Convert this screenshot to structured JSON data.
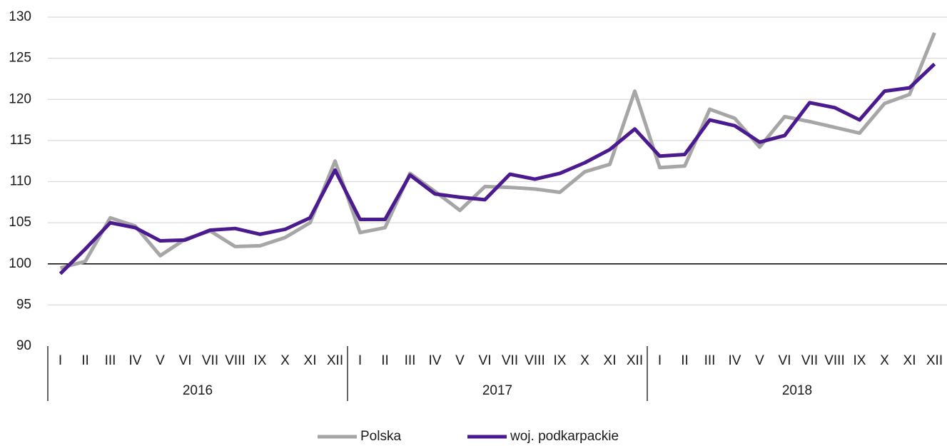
{
  "chart_data": {
    "type": "line",
    "categories": [
      "I",
      "II",
      "III",
      "IV",
      "V",
      "VI",
      "VII",
      "VIII",
      "IX",
      "X",
      "XI",
      "XII",
      "I",
      "II",
      "III",
      "IV",
      "V",
      "VI",
      "VII",
      "VIII",
      "IX",
      "X",
      "XI",
      "XII",
      "I",
      "II",
      "III",
      "IV",
      "V",
      "VI",
      "VII",
      "VIII",
      "IX",
      "X",
      "XI",
      "XII"
    ],
    "year_groups": [
      "2016",
      "2017",
      "2018"
    ],
    "series": [
      {
        "name": "Polska",
        "color": "#a6a6a6",
        "values": [
          99.5,
          100.3,
          105.6,
          104.6,
          101.0,
          103.0,
          104.0,
          102.1,
          102.2,
          103.2,
          105.0,
          112.5,
          103.8,
          104.4,
          111.0,
          108.8,
          106.5,
          109.4,
          109.3,
          109.1,
          108.7,
          111.2,
          112.1,
          121.0,
          111.7,
          111.9,
          118.8,
          117.7,
          114.2,
          117.9,
          117.3,
          116.6,
          115.9,
          119.5,
          120.6,
          128.1
        ]
      },
      {
        "name": "woj. podkarpackie",
        "color": "#4b1a8f",
        "values": [
          98.8,
          101.8,
          105.0,
          104.4,
          102.8,
          102.9,
          104.1,
          104.3,
          103.6,
          104.2,
          105.6,
          111.4,
          105.4,
          105.4,
          110.8,
          108.5,
          108.1,
          107.8,
          110.9,
          110.3,
          111.0,
          112.3,
          113.9,
          116.4,
          113.1,
          113.3,
          117.5,
          116.8,
          114.8,
          115.6,
          119.6,
          119.0,
          117.5,
          121.0,
          121.4,
          124.3
        ]
      }
    ],
    "ylim": [
      90,
      130
    ],
    "yticks": [
      90,
      95,
      100,
      105,
      110,
      115,
      120,
      125,
      130
    ],
    "baseline": 100,
    "grid": true,
    "legend": "bottom"
  }
}
